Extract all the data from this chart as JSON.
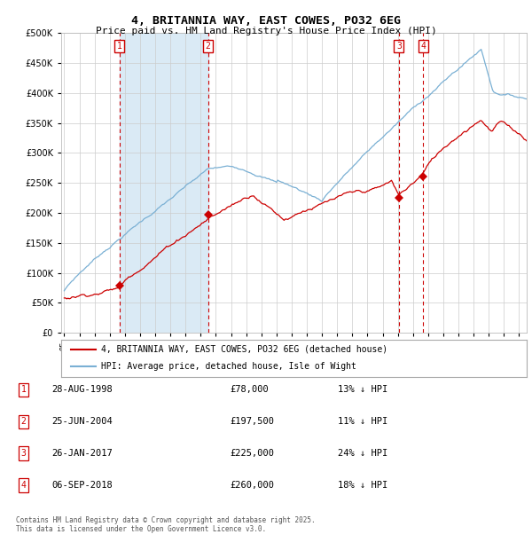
{
  "title": "4, BRITANNIA WAY, EAST COWES, PO32 6EG",
  "subtitle": "Price paid vs. HM Land Registry's House Price Index (HPI)",
  "legend_red": "4, BRITANNIA WAY, EAST COWES, PO32 6EG (detached house)",
  "legend_blue": "HPI: Average price, detached house, Isle of Wight",
  "footer": "Contains HM Land Registry data © Crown copyright and database right 2025.\nThis data is licensed under the Open Government Licence v3.0.",
  "transactions": [
    {
      "num": 1,
      "date": "28-AUG-1998",
      "price": 78000,
      "pct": "13% ↓ HPI"
    },
    {
      "num": 2,
      "date": "25-JUN-2004",
      "price": 197500,
      "pct": "11% ↓ HPI"
    },
    {
      "num": 3,
      "date": "26-JAN-2017",
      "price": 225000,
      "pct": "24% ↓ HPI"
    },
    {
      "num": 4,
      "date": "06-SEP-2018",
      "price": 260000,
      "pct": "18% ↓ HPI"
    }
  ],
  "transaction_dates_decimal": [
    1998.65,
    2004.48,
    2017.07,
    2018.68
  ],
  "transaction_prices": [
    78000,
    197500,
    225000,
    260000
  ],
  "shade_start": 1998.65,
  "shade_end": 2004.48,
  "ylim": [
    0,
    500000
  ],
  "xlim_start": 1994.8,
  "xlim_end": 2025.5,
  "xticks": [
    1995,
    1996,
    1997,
    1998,
    1999,
    2000,
    2001,
    2002,
    2003,
    2004,
    2005,
    2006,
    2007,
    2008,
    2009,
    2010,
    2011,
    2012,
    2013,
    2014,
    2015,
    2016,
    2017,
    2018,
    2019,
    2020,
    2021,
    2022,
    2023,
    2024,
    2025
  ],
  "yticks": [
    0,
    50000,
    100000,
    150000,
    200000,
    250000,
    300000,
    350000,
    400000,
    450000,
    500000
  ],
  "red_color": "#cc0000",
  "blue_color": "#7ab0d4",
  "shade_color": "#daeaf5",
  "vline_color": "#cc0000",
  "box_color": "#cc0000",
  "grid_color": "#cccccc",
  "bg_color": "#ffffff"
}
